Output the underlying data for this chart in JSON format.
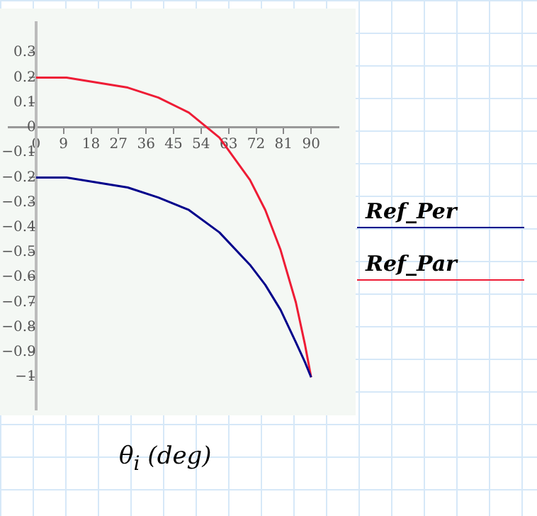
{
  "chart_data": {
    "type": "line",
    "xlabel": "θ$_{i}$ (deg)",
    "x": [
      0,
      10,
      20,
      30,
      40,
      50,
      60,
      70,
      75,
      80,
      85,
      88,
      90
    ],
    "series": [
      {
        "name": "Ref_Per",
        "color": "#00008b",
        "values": [
          -0.2,
          -0.2,
          -0.22,
          -0.24,
          -0.28,
          -0.33,
          -0.42,
          -0.55,
          -0.63,
          -0.73,
          -0.86,
          -0.94,
          -1
        ]
      },
      {
        "name": "Ref_Par",
        "color": "#ee1c35",
        "values": [
          0.2,
          0.2,
          0.18,
          0.16,
          0.12,
          0.06,
          -0.04,
          -0.21,
          -0.33,
          -0.49,
          -0.7,
          -0.87,
          -1
        ]
      }
    ],
    "xlim": [
      -9,
      99
    ],
    "xticks": [
      0,
      9,
      18,
      27,
      36,
      45,
      54,
      63,
      72,
      81,
      90
    ],
    "ylim": [
      -1.13,
      0.42
    ],
    "yticks": [
      -1,
      -0.9,
      -0.8,
      -0.7,
      -0.6,
      -0.5,
      -0.4,
      -0.3,
      -0.2,
      -0.1,
      0,
      0.1,
      0.2,
      0.3
    ],
    "grid": false,
    "legend": "right",
    "marker": "none",
    "line_style": "solid"
  }
}
